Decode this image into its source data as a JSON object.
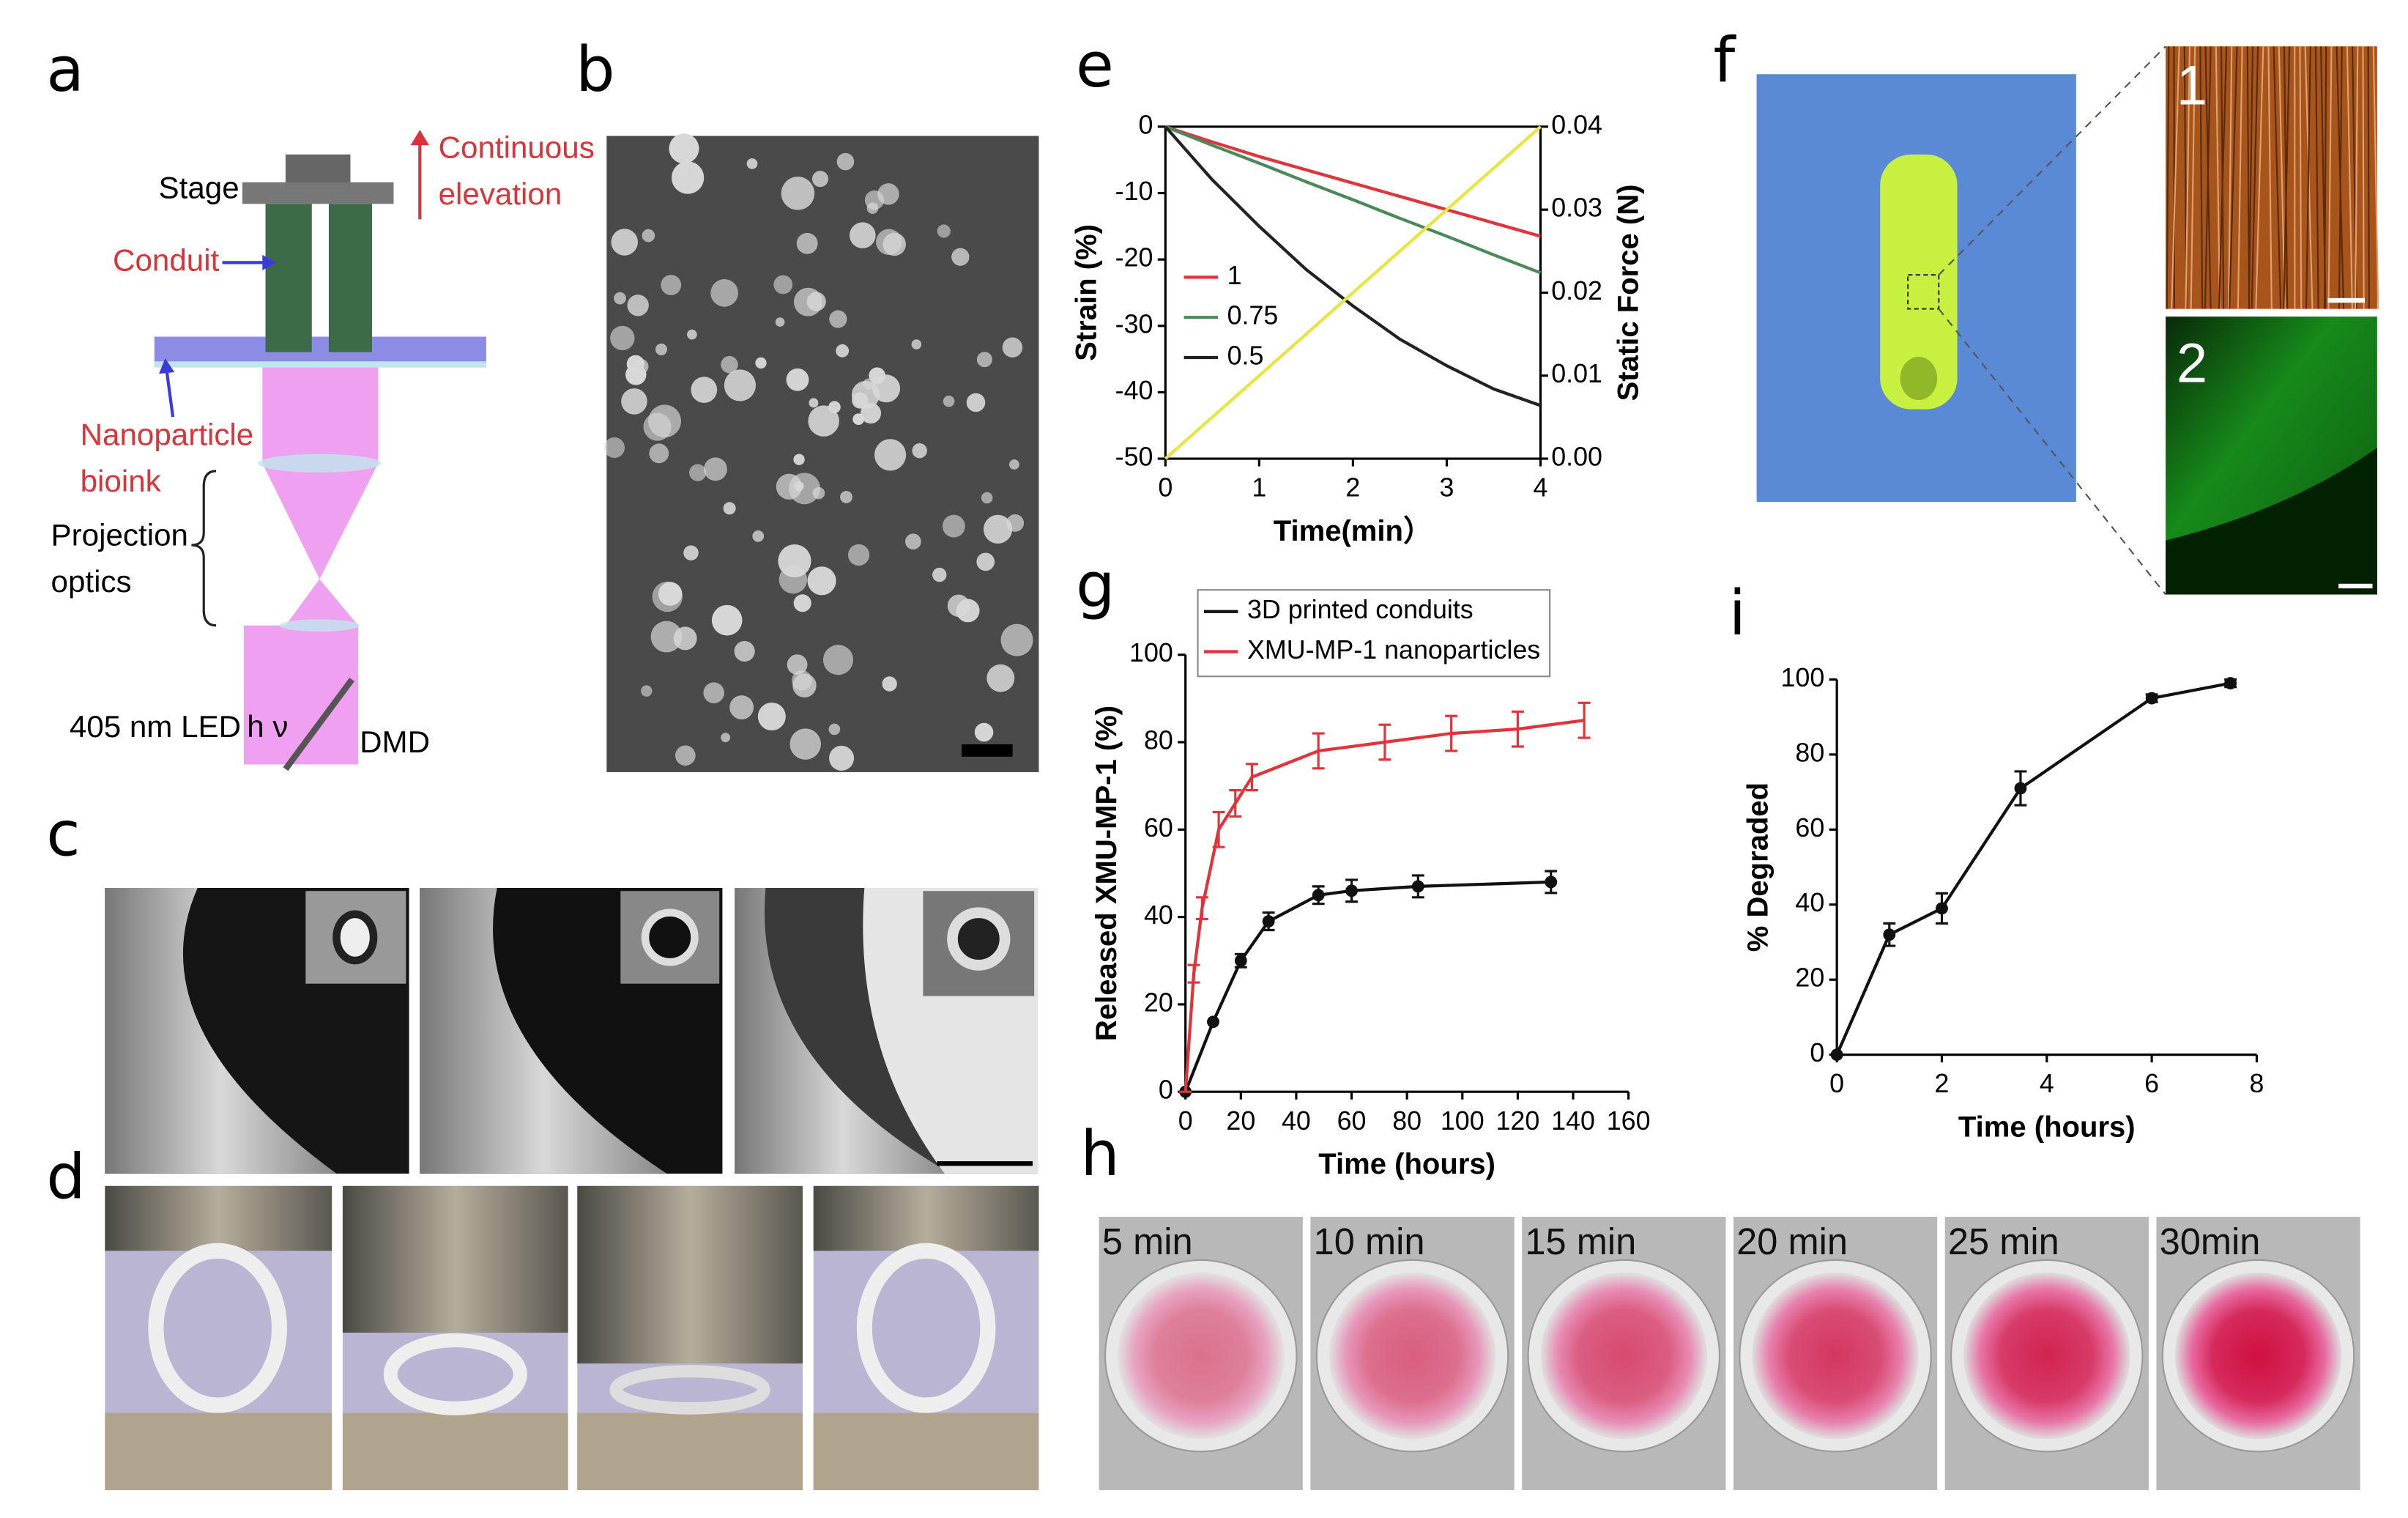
{
  "panels": {
    "letters": [
      "a",
      "b",
      "c",
      "d",
      "e",
      "f",
      "g",
      "h",
      "i"
    ],
    "diagram": {
      "stage": "Stage",
      "elevation": [
        "Continuous",
        "elevation"
      ],
      "conduit": "Conduit",
      "bioink": [
        "Nanoparticle",
        "bioink"
      ],
      "optics": [
        "Projection",
        "optics"
      ],
      "led": "405 nm LED",
      "hv": "h ν",
      "dmd": "DMD"
    },
    "f_insets": [
      "1",
      "2"
    ],
    "h_labels": [
      "5 min",
      "10 min",
      "15 min",
      "20 min",
      "25 min",
      "30min"
    ]
  },
  "chart_data": [
    {
      "type": "line",
      "xlabel": "Time(min）",
      "ylabel": "Strain (%)",
      "y2label": "Static Force (N)",
      "x": [
        0,
        0.5,
        1,
        1.5,
        2,
        2.5,
        3,
        3.5,
        4
      ],
      "xlim": [
        0,
        4
      ],
      "xticks": [
        0,
        1,
        2,
        3,
        4
      ],
      "ylim": [
        -50,
        0
      ],
      "yticks": [
        0,
        -10,
        -20,
        -30,
        -40,
        -50
      ],
      "y2lim": [
        0,
        0.04
      ],
      "y2ticks": [
        {
          "value": 0,
          "label": "0.00"
        },
        0.01,
        0.02,
        0.03,
        0.04
      ],
      "legend": "center left",
      "series": [
        {
          "name": "1",
          "color": "#e0333a",
          "values": [
            0,
            -2.3,
            -4.5,
            -6.5,
            -8.5,
            -10.5,
            -12.5,
            -14.5,
            -16.5
          ]
        },
        {
          "name": "0.75",
          "color": "#4a8a5a",
          "values": [
            0,
            -2.8,
            -5.5,
            -8.3,
            -11,
            -13.8,
            -16.5,
            -19.3,
            -22
          ]
        },
        {
          "name": "0.5",
          "color": "#222222",
          "values": [
            0,
            -8,
            -15,
            -21.5,
            -27,
            -32,
            -36,
            -39.5,
            -42
          ]
        },
        {
          "color": "#e6e640",
          "axis": "y2",
          "values": [
            0,
            0.005,
            0.01,
            0.015,
            0.02,
            0.025,
            0.03,
            0.035,
            0.04
          ]
        }
      ]
    },
    {
      "type": "line",
      "xlabel": "Time (hours)",
      "ylabel": "Released XMU-MP-1 (%)",
      "xlim": [
        0,
        160
      ],
      "xticks": [
        0,
        20,
        40,
        60,
        80,
        100,
        120,
        140,
        160
      ],
      "ylim": [
        0,
        100
      ],
      "yticks": [
        0,
        20,
        40,
        60,
        80,
        100
      ],
      "legend": "upper left",
      "series": [
        {
          "name": "3D printed conduits",
          "color": "#111111",
          "markers": true,
          "x": [
            0,
            10,
            20,
            30,
            48,
            60,
            84,
            132
          ],
          "values": [
            0,
            16,
            30,
            39,
            45,
            46,
            47,
            48
          ],
          "errors": [
            0,
            0,
            1.5,
            2,
            2,
            2.5,
            2.5,
            2.5
          ]
        },
        {
          "name": "XMU-MP-1 nanoparticles",
          "color": "#e0333a",
          "markers": false,
          "x": [
            0,
            3,
            6,
            12,
            18,
            24,
            48,
            72,
            96,
            120,
            144
          ],
          "values": [
            0,
            27,
            42,
            60,
            66,
            72,
            78,
            80,
            82,
            83,
            85
          ],
          "errors": [
            0,
            2,
            2.5,
            4,
            3,
            3,
            4,
            4,
            4,
            4,
            4
          ]
        }
      ]
    },
    {
      "type": "line",
      "xlabel": "Time (hours)",
      "ylabel": "% Degraded",
      "xlim": [
        0,
        8
      ],
      "xticks": [
        0,
        2,
        4,
        6,
        8
      ],
      "ylim": [
        0,
        100
      ],
      "yticks": [
        0,
        20,
        40,
        60,
        80,
        100
      ],
      "series": [
        {
          "color": "#111111",
          "markers": true,
          "x": [
            0,
            1,
            2,
            3.5,
            6,
            7.5
          ],
          "values": [
            0,
            32,
            39,
            71,
            95,
            99
          ],
          "errors": [
            0,
            3,
            4,
            4.5,
            1,
            1
          ]
        }
      ]
    }
  ]
}
